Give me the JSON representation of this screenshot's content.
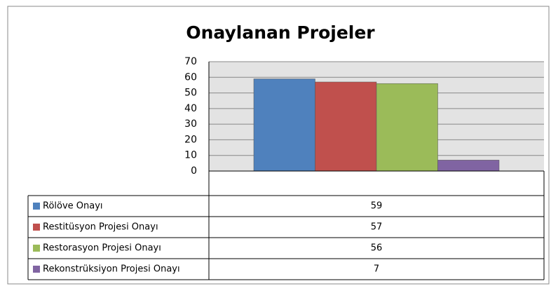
{
  "chart_data": {
    "type": "bar",
    "title": "Onaylanan Projeler",
    "categories": [
      null
    ],
    "series": [
      {
        "name": "Rölöve Onayı",
        "color": "#4f81bd",
        "values": [
          59
        ]
      },
      {
        "name": "Restitüsyon Projesi Onayı",
        "color": "#c0504d",
        "values": [
          57
        ]
      },
      {
        "name": "Restorasyon Projesi Onayı",
        "color": "#9bbb59",
        "values": [
          56
        ]
      },
      {
        "name": "Rekonstrüksiyon Projesi Onayı",
        "color": "#8064a2",
        "values": [
          7
        ]
      }
    ],
    "ylim": [
      0,
      70
    ],
    "yticks": [
      0,
      10,
      20,
      30,
      40,
      50,
      60,
      70
    ],
    "grid": true
  }
}
